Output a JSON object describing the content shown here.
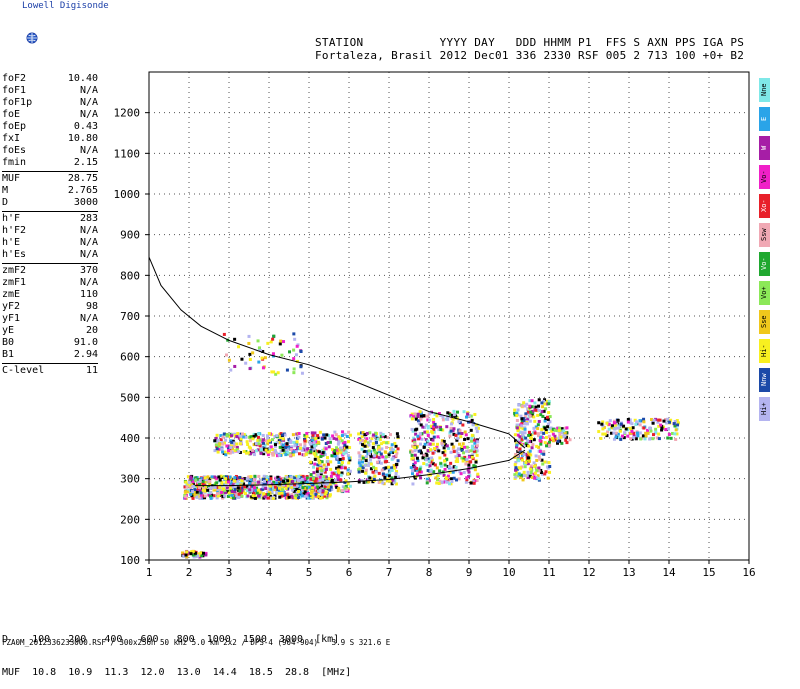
{
  "logo": {
    "text": "Lowell Digisonde",
    "icon": "globe-icon"
  },
  "header": {
    "line1": "STATION           YYYY DAY   DDD HHMM P1  FFS S AXN PPS IGA PS",
    "line2": "Fortaleza, Brasil 2012 Dec01 336 2330 RSF 005 2 713 100 +0+ B2"
  },
  "params": [
    [
      {
        "k": "foF2",
        "v": "10.40"
      },
      {
        "k": "foF1",
        "v": "N/A"
      },
      {
        "k": "foF1p",
        "v": "N/A"
      },
      {
        "k": "foE",
        "v": "N/A"
      },
      {
        "k": "foEp",
        "v": "0.43"
      },
      {
        "k": "fxI",
        "v": "10.80"
      },
      {
        "k": "foEs",
        "v": "N/A"
      },
      {
        "k": "fmin",
        "v": "2.15"
      }
    ],
    [
      {
        "k": "MUF",
        "v": "28.75"
      },
      {
        "k": "M",
        "v": "2.765"
      },
      {
        "k": "D",
        "v": "3000"
      }
    ],
    [
      {
        "k": "h'F",
        "v": "283"
      },
      {
        "k": "h'F2",
        "v": "N/A"
      },
      {
        "k": "h'E",
        "v": "N/A"
      },
      {
        "k": "h'Es",
        "v": "N/A"
      }
    ],
    [
      {
        "k": "zmF2",
        "v": "370"
      },
      {
        "k": "zmF1",
        "v": "N/A"
      },
      {
        "k": "zmE",
        "v": "110"
      },
      {
        "k": "yF2",
        "v": "98"
      },
      {
        "k": "yF1",
        "v": "N/A"
      },
      {
        "k": "yE",
        "v": "20"
      },
      {
        "k": "B0",
        "v": "91.0"
      },
      {
        "k": "B1",
        "v": "2.94"
      }
    ],
    [
      {
        "k": "C-level",
        "v": "11"
      }
    ]
  ],
  "legend": [
    {
      "label": "Nne",
      "color": "#7fe8e8"
    },
    {
      "label": "E",
      "color": "#2aa4e8"
    },
    {
      "label": "W",
      "color": "#a61ea6"
    },
    {
      "label": "Vo-",
      "color": "#f020c8"
    },
    {
      "label": "Xo-",
      "color": "#e8202a"
    },
    {
      "label": "Ssw",
      "color": "#f0a8b4"
    },
    {
      "label": "Vo-",
      "color": "#20a830"
    },
    {
      "label": "Vo+",
      "color": "#8ce858"
    },
    {
      "label": "Sse",
      "color": "#f0c81c"
    },
    {
      "label": "Hi-",
      "color": "#f8f020"
    },
    {
      "label": "Nnw",
      "color": "#1c4aa8"
    },
    {
      "label": "Hi+",
      "color": "#b4b4f0"
    }
  ],
  "bottom_table": {
    "row1": "D    100   200   400   600   800  1000  1500  3000  [km]",
    "row2": "MUF  10.8  10.9  11.3  12.0  13.0  14.4  18.5  28.8  [MHz]"
  },
  "footer": "FZA0M_2012336233000.RSF / 300x256h 50 kHz 5.0 km 2x2 / DPS-4 (904-904)   3.9 S 321.6 E",
  "chart_data": {
    "type": "scatter",
    "title": "",
    "xlabel": "",
    "ylabel": "",
    "xlim": [
      1,
      16
    ],
    "ylim": [
      100,
      1300
    ],
    "x_ticks": [
      1,
      2,
      3,
      4,
      5,
      6,
      7,
      8,
      9,
      10,
      11,
      12,
      13,
      14,
      15,
      16
    ],
    "y_ticks": [
      100,
      200,
      300,
      400,
      500,
      600,
      700,
      800,
      900,
      1000,
      1100,
      1200
    ],
    "grid": true,
    "colors": {
      "o_trace_high": "#f8f020",
      "x_trace": "#b4b4f0",
      "line": "#000000"
    },
    "profile_curve": {
      "x": [
        1.0,
        1.3,
        1.8,
        2.3,
        3.0,
        4.0,
        5.0,
        6.0,
        7.0,
        8.0,
        9.0,
        10.0,
        10.4
      ],
      "y": [
        845,
        775,
        715,
        675,
        640,
        605,
        580,
        545,
        505,
        465,
        440,
        410,
        375
      ]
    },
    "o_trace_curve": {
      "x": [
        2.15,
        3.0,
        4.0,
        5.0,
        6.0,
        7.0,
        8.0,
        9.0,
        10.0,
        10.4
      ],
      "y": [
        283,
        283,
        285,
        288,
        292,
        298,
        310,
        325,
        345,
        370
      ]
    }
  }
}
